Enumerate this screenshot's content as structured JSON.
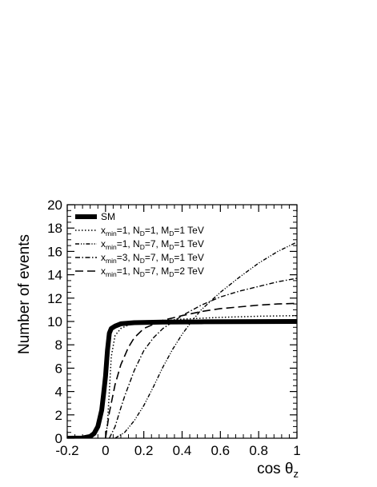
{
  "chart_data": {
    "type": "line",
    "xlabel_main": "cos θ",
    "xlabel_sub": "z",
    "ylabel": "Number of events",
    "xlim": [
      -0.2,
      1.0
    ],
    "ylim": [
      0,
      20
    ],
    "x_ticks": [
      "-0.2",
      "0",
      "0.2",
      "0.4",
      "0.6",
      "0.8",
      "1"
    ],
    "y_ticks": [
      "0",
      "2",
      "4",
      "6",
      "8",
      "10",
      "12",
      "14",
      "16",
      "18",
      "20"
    ],
    "grid": false,
    "legend_position": "top-left",
    "series": [
      {
        "key": "sm",
        "legend_parts": [
          {
            "t": "SM",
            "s": "n"
          }
        ],
        "style": "thick-solid",
        "points": [
          [
            -0.2,
            0
          ],
          [
            -0.12,
            0.02
          ],
          [
            -0.08,
            0.15
          ],
          [
            -0.06,
            0.4
          ],
          [
            -0.04,
            1.0
          ],
          [
            -0.02,
            2.4
          ],
          [
            -0.01,
            3.8
          ],
          [
            0,
            5.3
          ],
          [
            0.01,
            7.5
          ],
          [
            0.02,
            9.0
          ],
          [
            0.03,
            9.4
          ],
          [
            0.05,
            9.6
          ],
          [
            0.08,
            9.8
          ],
          [
            0.15,
            9.9
          ],
          [
            0.3,
            9.95
          ],
          [
            0.5,
            9.97
          ],
          [
            1.0,
            10.0
          ]
        ]
      },
      {
        "key": "xmin1-nd1-md1",
        "legend_parts": [
          {
            "t": "x",
            "s": "n"
          },
          {
            "t": "min",
            "s": "sub"
          },
          {
            "t": "=1, N",
            "s": "n"
          },
          {
            "t": "D",
            "s": "sub"
          },
          {
            "t": "=1, M",
            "s": "n"
          },
          {
            "t": "D",
            "s": "sub"
          },
          {
            "t": "=1 TeV",
            "s": "n"
          }
        ],
        "style": "dotted",
        "points": [
          [
            0,
            0
          ],
          [
            0.01,
            1.2
          ],
          [
            0.02,
            4.0
          ],
          [
            0.03,
            7.0
          ],
          [
            0.05,
            8.8
          ],
          [
            0.08,
            9.4
          ],
          [
            0.12,
            9.7
          ],
          [
            0.2,
            9.95
          ],
          [
            0.4,
            10.2
          ],
          [
            0.6,
            10.35
          ],
          [
            0.8,
            10.45
          ],
          [
            1.0,
            10.5
          ]
        ]
      },
      {
        "key": "xmin1-nd7-md1",
        "legend_parts": [
          {
            "t": "x",
            "s": "n"
          },
          {
            "t": "min",
            "s": "sub"
          },
          {
            "t": "=1, N",
            "s": "n"
          },
          {
            "t": "D",
            "s": "sub"
          },
          {
            "t": "=7, M",
            "s": "n"
          },
          {
            "t": "D",
            "s": "sub"
          },
          {
            "t": "=1 TeV",
            "s": "n"
          }
        ],
        "style": "dash-dot-dot",
        "points": [
          [
            0.05,
            0
          ],
          [
            0.1,
            0.5
          ],
          [
            0.15,
            1.5
          ],
          [
            0.2,
            2.8
          ],
          [
            0.25,
            4.4
          ],
          [
            0.3,
            6.1
          ],
          [
            0.35,
            7.6
          ],
          [
            0.4,
            8.9
          ],
          [
            0.45,
            10.0
          ],
          [
            0.5,
            11.0
          ],
          [
            0.6,
            12.5
          ],
          [
            0.7,
            13.8
          ],
          [
            0.8,
            15.0
          ],
          [
            0.9,
            16.0
          ],
          [
            1.0,
            16.8
          ]
        ]
      },
      {
        "key": "xmin3-nd7-md1",
        "legend_parts": [
          {
            "t": "x",
            "s": "n"
          },
          {
            "t": "min",
            "s": "sub"
          },
          {
            "t": "=3, N",
            "s": "n"
          },
          {
            "t": "D",
            "s": "sub"
          },
          {
            "t": "=7, M",
            "s": "n"
          },
          {
            "t": "D",
            "s": "sub"
          },
          {
            "t": "=1 TeV",
            "s": "n"
          }
        ],
        "style": "dash-dot",
        "points": [
          [
            0.02,
            0
          ],
          [
            0.05,
            1.0
          ],
          [
            0.08,
            2.6
          ],
          [
            0.1,
            3.6
          ],
          [
            0.15,
            5.8
          ],
          [
            0.2,
            7.5
          ],
          [
            0.25,
            8.6
          ],
          [
            0.3,
            9.4
          ],
          [
            0.4,
            10.5
          ],
          [
            0.5,
            11.4
          ],
          [
            0.6,
            12.1
          ],
          [
            0.7,
            12.6
          ],
          [
            0.8,
            13.0
          ],
          [
            0.9,
            13.4
          ],
          [
            1.0,
            13.7
          ]
        ]
      },
      {
        "key": "xmin1-nd7-md2",
        "legend_parts": [
          {
            "t": "x",
            "s": "n"
          },
          {
            "t": "min",
            "s": "sub"
          },
          {
            "t": "=1, N",
            "s": "n"
          },
          {
            "t": "D",
            "s": "sub"
          },
          {
            "t": "=7, M",
            "s": "n"
          },
          {
            "t": "D",
            "s": "sub"
          },
          {
            "t": "=2 TeV",
            "s": "n"
          }
        ],
        "style": "long-dash",
        "points": [
          [
            0,
            0
          ],
          [
            0.02,
            2.2
          ],
          [
            0.05,
            4.6
          ],
          [
            0.08,
            6.3
          ],
          [
            0.12,
            7.8
          ],
          [
            0.15,
            8.6
          ],
          [
            0.2,
            9.4
          ],
          [
            0.3,
            10.1
          ],
          [
            0.4,
            10.5
          ],
          [
            0.5,
            10.85
          ],
          [
            0.6,
            11.1
          ],
          [
            0.7,
            11.25
          ],
          [
            0.8,
            11.4
          ],
          [
            0.9,
            11.5
          ],
          [
            1.0,
            11.55
          ]
        ]
      }
    ]
  }
}
